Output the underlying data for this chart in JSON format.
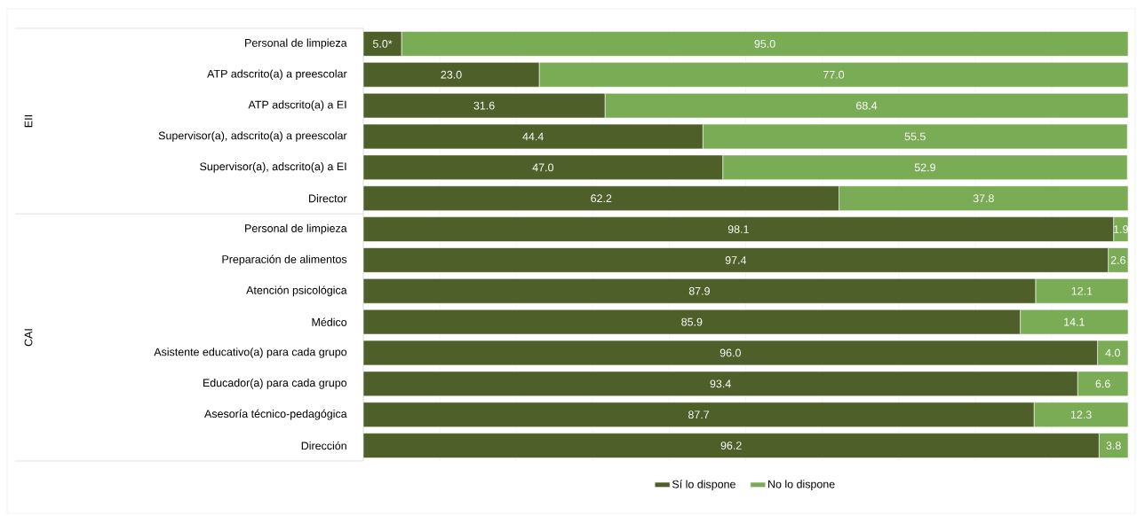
{
  "chart_data": {
    "type": "bar",
    "orientation": "horizontal",
    "stacked": true,
    "categories": [
      "Personal de limpieza",
      "ATP adscrito(a) a preescolar",
      "ATP adscrito(a) a EI",
      "Supervisor(a), adscrito(a) a preescolar",
      "Supervisor(a), adscrito(a) a EI",
      "Director",
      "Personal de limpieza",
      "Preparación de alimentos",
      "Atención psicológica",
      "Médico",
      "Asistente educativo(a) para cada grupo",
      "Educador(a) para cada grupo",
      "Asesoría técnico-pedagógica",
      "Dirección"
    ],
    "series": [
      {
        "name": "Sí lo dispone",
        "color": "#4e5f2a",
        "values": [
          5.0,
          23.0,
          31.6,
          44.4,
          47.0,
          62.2,
          98.1,
          97.4,
          87.9,
          85.9,
          96.0,
          93.4,
          87.7,
          96.2
        ],
        "value_labels": [
          "5.0*",
          "23.0",
          "31.6",
          "44.4",
          "47.0",
          "62.2",
          "98.1",
          "97.4",
          "87.9",
          "85.9",
          "96.0",
          "93.4",
          "87.7",
          "96.2"
        ]
      },
      {
        "name": "No lo dispone",
        "color": "#7aab55",
        "values": [
          95.0,
          77.0,
          68.4,
          55.5,
          52.9,
          37.8,
          1.9,
          2.6,
          12.1,
          14.1,
          4.0,
          6.6,
          12.3,
          3.8
        ],
        "value_labels": [
          "95.0",
          "77.0",
          "68.4",
          "55.5",
          "52.9",
          "37.8",
          "1.9",
          "2.6",
          "12.1",
          "14.1",
          "4.0",
          "6.6",
          "12.3",
          "3.8"
        ]
      }
    ],
    "annotations": [
      "EII",
      "CAI"
    ],
    "xlim": [
      0,
      100
    ],
    "xticks": [
      {
        "value": 0,
        "label": null
      },
      {
        "value": 10,
        "label": null
      },
      {
        "value": 20,
        "label": null
      },
      {
        "value": 30,
        "label": null
      },
      {
        "value": 40,
        "label": null
      },
      {
        "value": 50,
        "label": null
      },
      {
        "value": 60,
        "label": null
      },
      {
        "value": 70,
        "label": null
      },
      {
        "value": 80,
        "label": null
      },
      {
        "value": 90,
        "label": null
      },
      {
        "value": 100,
        "label": null
      }
    ],
    "grid": "x",
    "legend": "bottom",
    "tick_labels": "y"
  }
}
